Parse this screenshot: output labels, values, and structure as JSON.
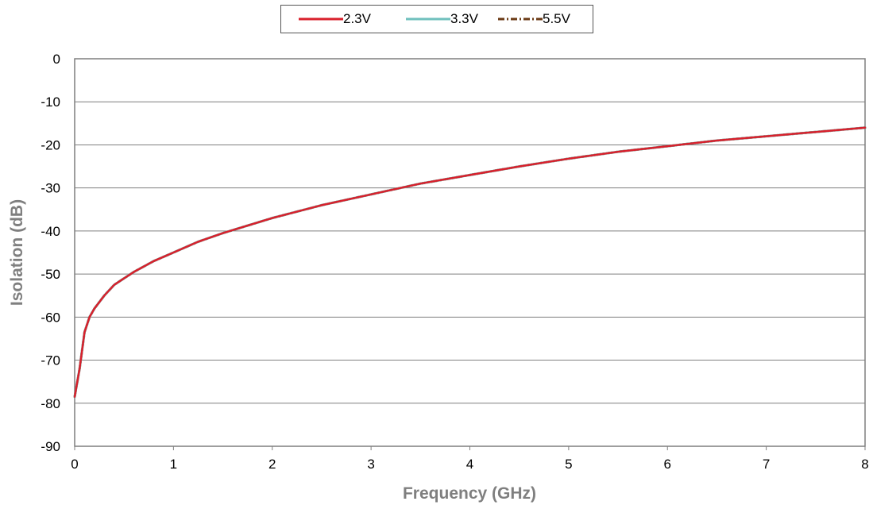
{
  "chart_data": {
    "type": "line",
    "title": "",
    "xlabel": "Frequency (GHz)",
    "ylabel": "Isolation (dB)",
    "xlim": [
      0,
      8
    ],
    "ylim": [
      -90,
      0
    ],
    "x_ticks": [
      "0",
      "1",
      "2",
      "3",
      "4",
      "5",
      "6",
      "7",
      "8"
    ],
    "y_ticks": [
      "0",
      "-10",
      "-20",
      "-30",
      "-40",
      "-50",
      "-60",
      "-70",
      "-80",
      "-90"
    ],
    "grid": "horizontal",
    "legend_position": "top-center",
    "x": [
      0.0,
      0.05,
      0.1,
      0.15,
      0.2,
      0.3,
      0.4,
      0.5,
      0.6,
      0.8,
      1.0,
      1.25,
      1.5,
      2.0,
      2.5,
      3.0,
      3.5,
      4.0,
      4.5,
      5.0,
      5.5,
      6.0,
      6.5,
      7.0,
      7.5,
      8.0
    ],
    "series": [
      {
        "name": "2.3V",
        "color": "#d9202c",
        "style": "solid",
        "values": [
          -78.5,
          -72,
          -63.5,
          -60,
          -58,
          -55,
          -52.5,
          -51,
          -49.5,
          -47,
          -45,
          -42.5,
          -40.5,
          -37,
          -34,
          -31.5,
          -29,
          -27,
          -25,
          -23.2,
          -21.6,
          -20.3,
          -19,
          -18,
          -17,
          -16
        ]
      },
      {
        "name": "3.3V",
        "color": "#6fc0bd",
        "style": "solid",
        "values": [
          -78.5,
          -72,
          -63.5,
          -60,
          -58,
          -55,
          -52.5,
          -51,
          -49.5,
          -47,
          -45,
          -42.5,
          -40.5,
          -37,
          -34,
          -31.5,
          -29,
          -27,
          -25,
          -23.2,
          -21.6,
          -20.3,
          -19,
          -18,
          -17,
          -16
        ]
      },
      {
        "name": "5.5V",
        "color": "#6b3a15",
        "style": "dash-dot",
        "values": [
          -78.5,
          -72,
          -63.5,
          -60,
          -58,
          -55,
          -52.5,
          -51,
          -49.5,
          -47,
          -45,
          -42.5,
          -40.5,
          -37,
          -34,
          -31.5,
          -29,
          -27,
          -25,
          -23.2,
          -21.6,
          -20.3,
          -19,
          -18,
          -17,
          -16
        ]
      }
    ]
  }
}
